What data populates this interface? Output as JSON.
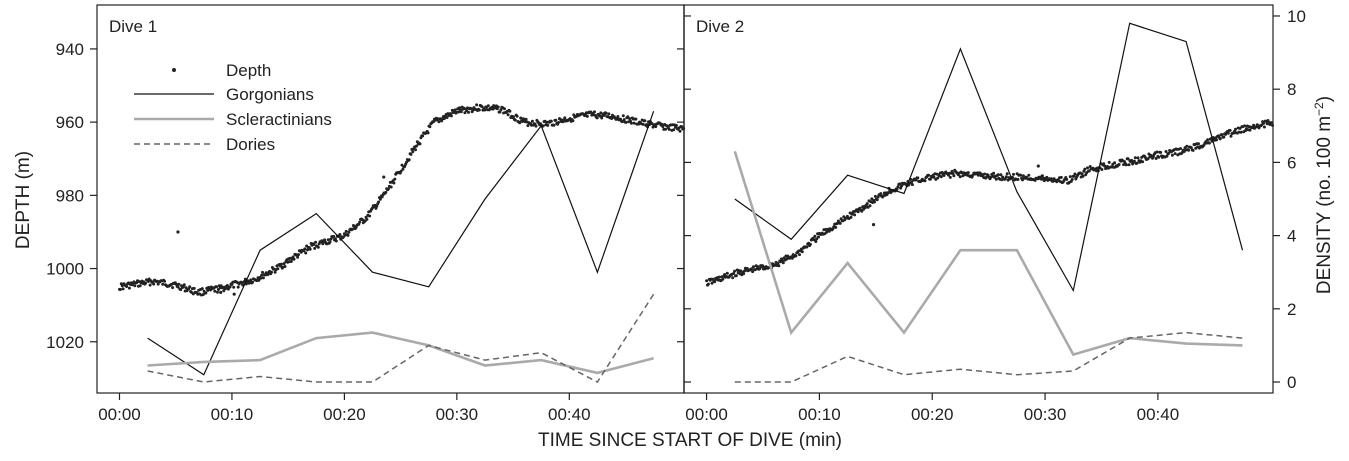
{
  "chart_data": {
    "type": "line",
    "xlabel": "TIME SINCE START OF DIVE (min)",
    "ylabel_left": "DEPTH (m)",
    "ylabel_right_main": "DENSITY (no. 100 m",
    "ylabel_right_sup": "−2",
    "ylabel_right_close": ")",
    "x_ticks": [
      "00:00",
      "00:10",
      "00:20",
      "00:30",
      "00:40"
    ],
    "x_tick_values": [
      0,
      10,
      20,
      30,
      40
    ],
    "xlim": [
      -2,
      50.2
    ],
    "depth_ticks": [
      940,
      960,
      980,
      1000,
      1020
    ],
    "depth_ylim": [
      928,
      1034
    ],
    "depth_inverted": true,
    "density_ticks": [
      0,
      2,
      4,
      6,
      8,
      10
    ],
    "density_ylim": [
      -0.3,
      10.3
    ],
    "legend": {
      "position": "top-left",
      "entries": [
        {
          "key": "depth",
          "label": "Depth",
          "style": "dots"
        },
        {
          "key": "gorgonians",
          "label": "Gorgonians",
          "style": "thin-black"
        },
        {
          "key": "scleractinians",
          "label": "Scleractinians",
          "style": "thick-gray"
        },
        {
          "key": "dories",
          "label": "Dories",
          "style": "dashed-gray"
        }
      ]
    },
    "colors": {
      "depth": "#222222",
      "gorgonians": "#111111",
      "scleractinians": "#aaaaaa",
      "dories": "#666666"
    },
    "panels": [
      {
        "label": "Dive 1",
        "density_x": [
          2.5,
          7.5,
          12.5,
          17.5,
          22.5,
          27.5,
          32.5,
          37.5,
          42.5,
          47.5
        ],
        "series": [
          {
            "key": "gorgonians",
            "values": [
              1.2,
              0.2,
              3.6,
              4.6,
              3.0,
              2.6,
              5.0,
              7.0,
              3.0,
              7.4
            ]
          },
          {
            "key": "scleractinians",
            "values": [
              0.45,
              0.55,
              0.6,
              1.2,
              1.35,
              1.0,
              0.45,
              0.6,
              0.25,
              0.65
            ]
          },
          {
            "key": "dories",
            "values": [
              0.3,
              0.0,
              0.15,
              0.0,
              0.0,
              1.0,
              0.6,
              0.8,
              0.0,
              2.4
            ]
          }
        ],
        "depth_profile": [
          [
            0,
            1005
          ],
          [
            3,
            1003.5
          ],
          [
            5,
            1004.5
          ],
          [
            7,
            1006.5
          ],
          [
            9,
            1005.5
          ],
          [
            12,
            1003
          ],
          [
            14,
            1000
          ],
          [
            17,
            994
          ],
          [
            20,
            991
          ],
          [
            22,
            986
          ],
          [
            23.5,
            980
          ],
          [
            25,
            973
          ],
          [
            26.5,
            966
          ],
          [
            28,
            960
          ],
          [
            30,
            957
          ],
          [
            32,
            956
          ],
          [
            34,
            956.5
          ],
          [
            36,
            960
          ],
          [
            38,
            960.5
          ],
          [
            40,
            959
          ],
          [
            42,
            958
          ],
          [
            44,
            958.5
          ],
          [
            46,
            960
          ],
          [
            48,
            961
          ],
          [
            50.2,
            962
          ]
        ],
        "depth_outliers": [
          [
            5.2,
            990
          ],
          [
            9,
            1006.5
          ],
          [
            10.2,
            1007
          ],
          [
            23.5,
            975
          ]
        ]
      },
      {
        "label": "Dive 2",
        "density_x": [
          2.5,
          7.5,
          12.5,
          17.5,
          22.5,
          27.5,
          32.5,
          37.5,
          42.5,
          47.5
        ],
        "series": [
          {
            "key": "gorgonians",
            "values": [
              5.0,
              3.9,
              5.65,
              5.15,
              9.1,
              5.2,
              2.5,
              9.8,
              9.3,
              3.6
            ]
          },
          {
            "key": "scleractinians",
            "values": [
              6.3,
              1.35,
              3.25,
              1.35,
              3.6,
              3.6,
              0.75,
              1.2,
              1.05,
              1.0
            ]
          },
          {
            "key": "dories",
            "values": [
              0.0,
              0.0,
              0.7,
              0.2,
              0.35,
              0.2,
              0.3,
              1.2,
              1.35,
              1.2
            ]
          }
        ],
        "depth_profile": [
          [
            0,
            1004
          ],
          [
            3,
            1001
          ],
          [
            6,
            999
          ],
          [
            8,
            996
          ],
          [
            10,
            991
          ],
          [
            12,
            987
          ],
          [
            14,
            983
          ],
          [
            16,
            979
          ],
          [
            18,
            976.5
          ],
          [
            20,
            975
          ],
          [
            22,
            974
          ],
          [
            24,
            974.5
          ],
          [
            26,
            975
          ],
          [
            28,
            975
          ],
          [
            30,
            975.5
          ],
          [
            32,
            976
          ],
          [
            34,
            973
          ],
          [
            36,
            971.5
          ],
          [
            38,
            970.5
          ],
          [
            40,
            969
          ],
          [
            42,
            968
          ],
          [
            44,
            966
          ],
          [
            46,
            963.5
          ],
          [
            48,
            961.5
          ],
          [
            50.2,
            960
          ]
        ],
        "depth_outliers": [
          [
            14.8,
            988
          ],
          [
            29.4,
            972
          ]
        ]
      }
    ]
  }
}
